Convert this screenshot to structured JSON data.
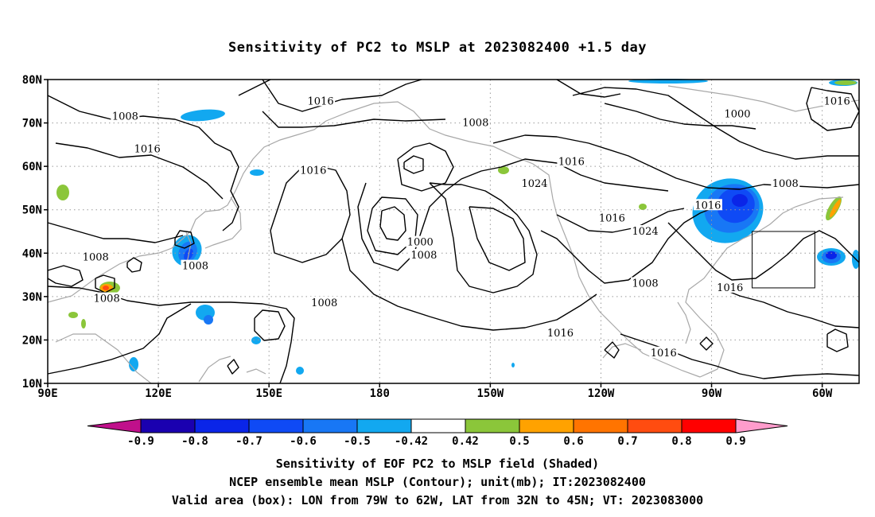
{
  "title": "Sensitivity of PC2 to MSLP at 2023082400 +1.5 day",
  "lat_labels": [
    "80N",
    "70N",
    "60N",
    "50N",
    "40N",
    "30N",
    "20N",
    "10N"
  ],
  "lon_labels": [
    "90E",
    "120E",
    "150E",
    "180",
    "150W",
    "120W",
    "90W",
    "60W"
  ],
  "contour_labels": [
    {
      "text": "1016",
      "lon": 164,
      "lat": 75
    },
    {
      "text": "1008",
      "lon": 111,
      "lat": 71.5
    },
    {
      "text": "1016",
      "lon": 117,
      "lat": 64
    },
    {
      "text": "1016",
      "lon": 162,
      "lat": 59
    },
    {
      "text": "1008",
      "lon": 206,
      "lat": 70
    },
    {
      "text": "1024",
      "lon": 222,
      "lat": 56
    },
    {
      "text": "1016",
      "lon": 232,
      "lat": 61
    },
    {
      "text": "1000",
      "lon": 277,
      "lat": 72
    },
    {
      "text": "1016",
      "lon": 304,
      "lat": 75
    },
    {
      "text": "1008",
      "lon": 290,
      "lat": 56
    },
    {
      "text": "1016",
      "lon": 269,
      "lat": 51
    },
    {
      "text": "1016",
      "lon": 243,
      "lat": 48
    },
    {
      "text": "1024",
      "lon": 252,
      "lat": 45
    },
    {
      "text": "1000",
      "lon": 191,
      "lat": 42.5
    },
    {
      "text": "1008",
      "lon": 192,
      "lat": 39.5
    },
    {
      "text": "1008",
      "lon": 103,
      "lat": 39
    },
    {
      "text": "1008",
      "lon": 130,
      "lat": 37
    },
    {
      "text": "1008",
      "lon": 106,
      "lat": 29.5
    },
    {
      "text": "1008",
      "lon": 165,
      "lat": 28.5
    },
    {
      "text": "1008",
      "lon": 252,
      "lat": 33
    },
    {
      "text": "1016",
      "lon": 275,
      "lat": 32
    },
    {
      "text": "1016",
      "lon": 229,
      "lat": 21.5
    },
    {
      "text": "1016",
      "lon": 257,
      "lat": 17
    }
  ],
  "colorbar": {
    "labels": [
      "-0.9",
      "-0.8",
      "-0.7",
      "-0.6",
      "-0.5",
      "-0.42",
      "0.42",
      "0.5",
      "0.6",
      "0.7",
      "0.8",
      "0.9"
    ],
    "colors": [
      "#1a00b0",
      "#0a25e8",
      "#0f4af5",
      "#1877f5",
      "#12a8f0",
      "#ffffff",
      "#8bc63a",
      "#ffa200",
      "#ff7400",
      "#ff4c10",
      "#ff0000"
    ],
    "end_low_color": "#c0108b",
    "end_high_color": "#ff9ccc"
  },
  "valid_box": {
    "lon_min": 281,
    "lon_max": 298,
    "lat_min": 32,
    "lat_max": 45
  },
  "footer": {
    "line1": "Sensitivity of EOF PC2 to MSLP field (Shaded)",
    "line2": "NCEP ensemble mean MSLP (Contour); unit(mb); IT:2023082400",
    "line3": "Valid area (box): LON from 79W to 62W, LAT from 32N to 45N; VT: 2023083000"
  }
}
